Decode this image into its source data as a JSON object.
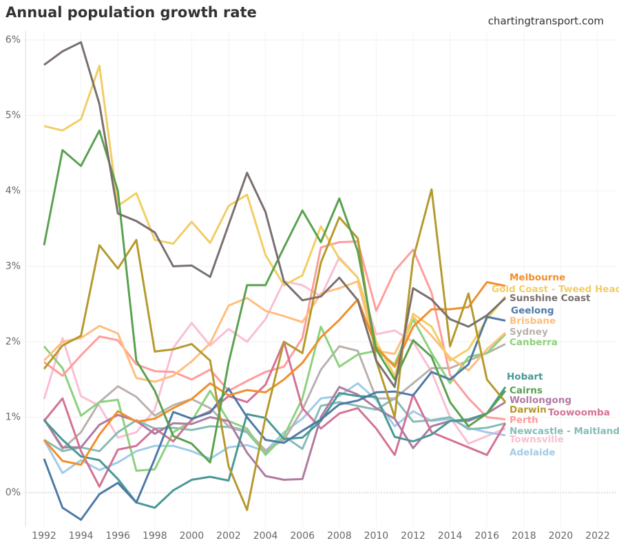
{
  "chart_data": {
    "type": "line",
    "title": "Annual population growth rate",
    "source": "chartingtransport.com",
    "x": [
      1992,
      1993,
      1994,
      1995,
      1996,
      1997,
      1998,
      1999,
      2000,
      2001,
      2002,
      2003,
      2004,
      2005,
      2006,
      2007,
      2008,
      2009,
      2010,
      2011,
      2012,
      2013,
      2014,
      2015,
      2016,
      2017
    ],
    "xlim": [
      1991,
      2023
    ],
    "xticks": [
      1992,
      1994,
      1996,
      1998,
      2000,
      2002,
      2004,
      2006,
      2008,
      2010,
      2012,
      2014,
      2016,
      2018,
      2020,
      2022
    ],
    "ylim": [
      -0.45,
      6.12
    ],
    "yticks": [
      {
        "value": 0,
        "label": "0%"
      },
      {
        "value": 1,
        "label": "1%"
      },
      {
        "value": 2,
        "label": "2%"
      },
      {
        "value": 3,
        "label": "3%"
      },
      {
        "value": 4,
        "label": "4%"
      },
      {
        "value": 5,
        "label": "5%"
      },
      {
        "value": 6,
        "label": "6%"
      }
    ],
    "grid": true,
    "series": [
      {
        "name": "Townsville",
        "color": "#fabfd2",
        "values": [
          1.24,
          2.05,
          1.28,
          1.15,
          0.73,
          0.8,
          1.1,
          1.92,
          2.25,
          1.95,
          2.17,
          2.0,
          2.3,
          2.8,
          2.75,
          2.6,
          3.12,
          2.85,
          2.1,
          2.15,
          2.0,
          1.6,
          1.0,
          0.65,
          0.75,
          0.85
        ]
      },
      {
        "name": "Adelaide",
        "color": "#a0cbe8",
        "values": [
          0.7,
          0.26,
          0.43,
          0.3,
          0.4,
          0.55,
          0.62,
          0.62,
          0.55,
          0.45,
          0.6,
          0.63,
          0.55,
          0.8,
          0.98,
          1.25,
          1.28,
          1.45,
          1.23,
          0.88,
          1.08,
          0.95,
          0.98,
          0.86,
          0.8,
          0.76
        ]
      },
      {
        "name": "Newcastle - Maitland",
        "color": "#86bcb6",
        "values": [
          0.7,
          0.55,
          0.6,
          0.55,
          0.8,
          0.96,
          0.85,
          0.86,
          0.83,
          0.88,
          0.87,
          0.8,
          0.52,
          0.75,
          0.58,
          1.15,
          1.2,
          1.15,
          1.1,
          1.25,
          0.94,
          0.96,
          1.0,
          0.84,
          0.86,
          0.92
        ]
      },
      {
        "name": "Sydney",
        "color": "#bab0ac",
        "values": [
          0.98,
          0.58,
          0.8,
          1.2,
          1.41,
          1.27,
          1.02,
          1.16,
          1.24,
          1.12,
          0.88,
          0.82,
          0.56,
          0.7,
          1.1,
          1.63,
          1.94,
          1.88,
          1.25,
          1.25,
          1.45,
          1.65,
          1.65,
          1.75,
          1.85,
          1.97
        ]
      },
      {
        "name": "Canberra",
        "color": "#8cd17d",
        "values": [
          1.94,
          1.65,
          1.02,
          1.2,
          1.23,
          0.29,
          0.31,
          0.8,
          0.95,
          1.35,
          0.95,
          0.85,
          0.5,
          0.75,
          1.25,
          2.2,
          1.67,
          1.83,
          1.88,
          1.7,
          2.3,
          1.85,
          1.45,
          1.8,
          1.85,
          2.1
        ]
      },
      {
        "name": "Perth",
        "color": "#ff9d9a",
        "values": [
          1.73,
          1.55,
          1.82,
          2.07,
          2.02,
          1.7,
          1.61,
          1.6,
          1.5,
          1.63,
          1.35,
          1.48,
          1.6,
          1.67,
          2.05,
          3.25,
          3.32,
          3.33,
          2.41,
          2.94,
          3.22,
          2.65,
          1.56,
          1.25,
          1.0,
          0.97
        ]
      },
      {
        "name": "Brisbane",
        "color": "#ffbe7d",
        "values": [
          1.75,
          2.0,
          2.05,
          2.21,
          2.11,
          1.52,
          1.47,
          1.55,
          1.74,
          1.98,
          2.48,
          2.58,
          2.41,
          2.34,
          2.26,
          2.64,
          2.71,
          2.8,
          1.88,
          1.84,
          2.33,
          2.08,
          1.79,
          1.62,
          1.9,
          2.12
        ]
      },
      {
        "name": "Gold Coast - Tweed Heads",
        "color": "#f1ce63",
        "values": [
          4.86,
          4.8,
          4.95,
          5.66,
          3.8,
          3.97,
          3.35,
          3.3,
          3.59,
          3.31,
          3.8,
          3.95,
          3.15,
          2.75,
          2.88,
          3.53,
          3.1,
          2.85,
          2.0,
          1.55,
          2.37,
          2.2,
          1.75,
          1.9,
          2.3,
          2.6
        ]
      },
      {
        "name": "Toowoomba",
        "color": "#d37295",
        "values": [
          0.95,
          1.25,
          0.55,
          0.08,
          0.57,
          0.62,
          0.85,
          0.68,
          0.97,
          1.08,
          1.28,
          1.2,
          1.43,
          2.0,
          1.12,
          0.85,
          1.05,
          1.12,
          0.85,
          0.5,
          1.3,
          0.8,
          0.7,
          0.6,
          0.5,
          0.92
        ]
      },
      {
        "name": "Wollongong",
        "color": "#b07aa1",
        "values": [
          0.97,
          0.6,
          0.6,
          0.9,
          1.03,
          0.95,
          0.78,
          0.92,
          0.91,
          1.0,
          0.95,
          0.53,
          0.22,
          0.17,
          0.18,
          1.0,
          1.4,
          1.3,
          1.12,
          0.98,
          0.59,
          0.88,
          0.95,
          0.95,
          1.05,
          1.2
        ]
      },
      {
        "name": "Hobart",
        "color": "#499894",
        "values": [
          0.96,
          0.7,
          0.48,
          0.43,
          0.18,
          -0.13,
          -0.2,
          0.03,
          0.17,
          0.21,
          0.16,
          1.04,
          0.99,
          0.71,
          0.73,
          0.95,
          1.32,
          1.28,
          1.27,
          0.74,
          0.68,
          0.77,
          0.95,
          0.97,
          1.05,
          1.4
        ]
      },
      {
        "name": "Geelong",
        "color": "#4e79a7",
        "values": [
          0.45,
          -0.2,
          -0.36,
          -0.02,
          0.13,
          -0.13,
          0.45,
          1.07,
          0.98,
          1.06,
          1.38,
          1.0,
          0.7,
          0.66,
          0.82,
          0.97,
          1.17,
          1.22,
          1.33,
          1.34,
          1.29,
          1.6,
          1.5,
          1.7,
          2.33,
          2.28
        ]
      },
      {
        "name": "Melbourne",
        "color": "#f28e2b",
        "values": [
          0.7,
          0.42,
          0.37,
          0.77,
          1.08,
          0.94,
          0.98,
          1.12,
          1.24,
          1.45,
          1.29,
          1.36,
          1.33,
          1.5,
          1.72,
          2.06,
          2.29,
          2.56,
          1.93,
          1.67,
          2.2,
          2.43,
          2.43,
          2.46,
          2.79,
          2.74
        ]
      },
      {
        "name": "Darwin",
        "color": "#b6992d",
        "values": [
          1.64,
          1.95,
          2.08,
          3.28,
          2.97,
          3.35,
          1.87,
          1.9,
          1.97,
          1.75,
          0.35,
          -0.23,
          1.0,
          2.0,
          1.85,
          3.05,
          3.65,
          3.37,
          1.75,
          1.0,
          3.1,
          4.02,
          1.94,
          2.64,
          1.5,
          1.2
        ]
      },
      {
        "name": "Cairns",
        "color": "#59a14f",
        "values": [
          3.28,
          4.54,
          4.33,
          4.8,
          4.0,
          1.75,
          1.35,
          0.75,
          0.65,
          0.4,
          1.72,
          2.75,
          2.75,
          3.25,
          3.74,
          3.32,
          3.9,
          3.2,
          1.9,
          1.5,
          2.02,
          1.8,
          1.2,
          0.88,
          1.05,
          1.35
        ]
      },
      {
        "name": "Sunshine Coast",
        "color": "#79706e",
        "values": [
          5.67,
          5.85,
          5.97,
          5.15,
          3.7,
          3.6,
          3.45,
          3.0,
          3.01,
          2.86,
          3.55,
          4.24,
          3.72,
          2.8,
          2.55,
          2.6,
          2.85,
          2.55,
          1.75,
          1.4,
          2.71,
          2.56,
          2.3,
          2.2,
          2.35,
          2.58
        ]
      }
    ]
  }
}
